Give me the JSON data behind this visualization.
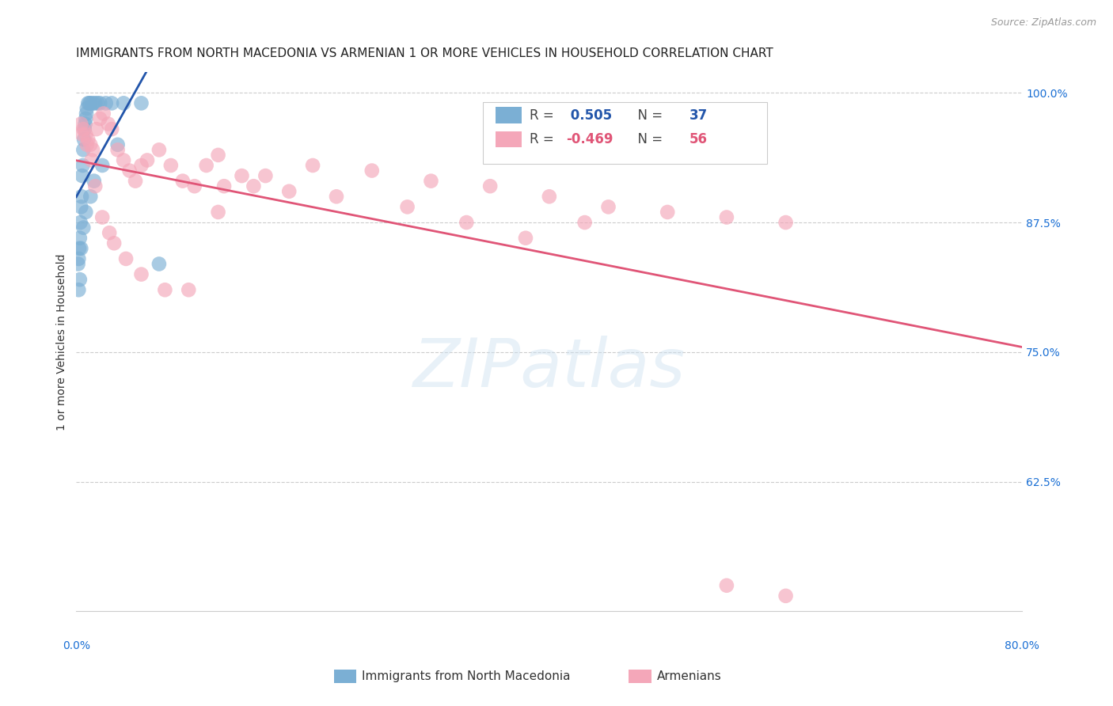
{
  "title": "IMMIGRANTS FROM NORTH MACEDONIA VS ARMENIAN 1 OR MORE VEHICLES IN HOUSEHOLD CORRELATION CHART",
  "source": "Source: ZipAtlas.com",
  "ylabel": "1 or more Vehicles in Household",
  "xlim": [
    0.0,
    80.0
  ],
  "ylim": [
    50.0,
    102.0
  ],
  "yticks": [
    62.5,
    75.0,
    87.5,
    100.0
  ],
  "ytick_labels": [
    "62.5%",
    "75.0%",
    "87.5%",
    "100.0%"
  ],
  "blue_R": 0.505,
  "blue_N": 37,
  "pink_R": -0.469,
  "pink_N": 56,
  "blue_color": "#7bafd4",
  "pink_color": "#f4a7b9",
  "blue_line_color": "#2255aa",
  "pink_line_color": "#e05577",
  "legend_label_blue": "Immigrants from North Macedonia",
  "legend_label_pink": "Armenians",
  "blue_points_x": [
    0.15,
    0.2,
    0.25,
    0.3,
    0.35,
    0.4,
    0.45,
    0.5,
    0.55,
    0.6,
    0.65,
    0.7,
    0.75,
    0.8,
    0.85,
    0.9,
    1.0,
    1.1,
    1.2,
    1.4,
    1.6,
    1.8,
    2.0,
    2.5,
    3.0,
    4.0,
    5.5,
    7.0,
    0.2,
    0.3,
    0.4,
    0.6,
    0.8,
    1.2,
    1.5,
    2.2,
    3.5
  ],
  "blue_points_y": [
    83.5,
    84.0,
    85.0,
    86.0,
    87.5,
    89.0,
    90.0,
    92.0,
    93.0,
    94.5,
    95.5,
    96.5,
    97.0,
    97.5,
    98.0,
    98.5,
    99.0,
    99.0,
    99.0,
    99.0,
    99.0,
    99.0,
    99.0,
    99.0,
    99.0,
    99.0,
    99.0,
    83.5,
    81.0,
    82.0,
    85.0,
    87.0,
    88.5,
    90.0,
    91.5,
    93.0,
    95.0
  ],
  "pink_points_x": [
    0.4,
    0.6,
    0.8,
    1.0,
    1.2,
    1.4,
    1.7,
    2.0,
    2.3,
    2.7,
    3.0,
    3.5,
    4.0,
    4.5,
    5.0,
    5.5,
    6.0,
    7.0,
    8.0,
    9.0,
    10.0,
    11.0,
    12.0,
    14.0,
    16.0,
    20.0,
    25.0,
    30.0,
    35.0,
    40.0,
    45.0,
    50.0,
    55.0,
    60.0,
    0.5,
    0.9,
    1.3,
    1.6,
    2.2,
    2.8,
    3.2,
    4.2,
    5.5,
    7.5,
    9.5,
    12.5,
    15.0,
    18.0,
    22.0,
    28.0,
    33.0,
    38.0,
    43.0,
    12.0,
    55.0,
    60.0
  ],
  "pink_points_y": [
    97.0,
    96.5,
    96.0,
    95.5,
    95.0,
    94.5,
    96.5,
    97.5,
    98.0,
    97.0,
    96.5,
    94.5,
    93.5,
    92.5,
    91.5,
    93.0,
    93.5,
    94.5,
    93.0,
    91.5,
    91.0,
    93.0,
    94.0,
    92.0,
    92.0,
    93.0,
    92.5,
    91.5,
    91.0,
    90.0,
    89.0,
    88.5,
    88.0,
    87.5,
    96.0,
    95.0,
    93.5,
    91.0,
    88.0,
    86.5,
    85.5,
    84.0,
    82.5,
    81.0,
    81.0,
    91.0,
    91.0,
    90.5,
    90.0,
    89.0,
    87.5,
    86.0,
    87.5,
    88.5,
    52.5,
    51.5
  ],
  "watermark_text": "ZIPatlas",
  "background_color": "#ffffff",
  "title_color": "#222222",
  "axis_label_color": "#1a6fd4",
  "grid_color": "#cccccc",
  "title_fontsize": 11,
  "axis_fontsize": 10,
  "tick_fontsize": 10,
  "source_fontsize": 9
}
